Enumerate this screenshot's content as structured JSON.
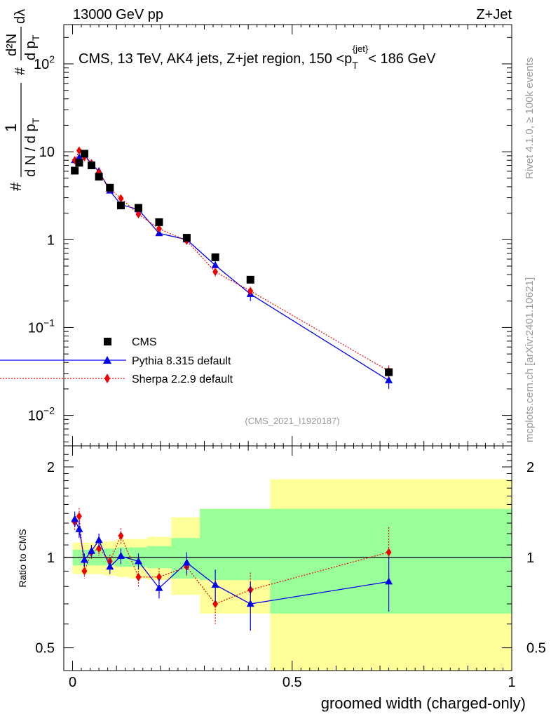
{
  "header": {
    "left": "13000 GeV pp",
    "right": "Z+Jet"
  },
  "side_labels": {
    "right_top": "Rivet 4.1.0, ≥ 100k events",
    "right_bottom": "mcplots.cern.ch [arXiv:2401.10621]"
  },
  "colors": {
    "cms": "#000000",
    "pythia": "#0000ee",
    "sherpa": "#ee0000",
    "band_outer": "#ffff99",
    "band_inner": "#99ff99"
  },
  "chart_data": [
    {
      "type": "scatter",
      "scale": "log",
      "title": "CMS, 13 TeV, AK4 jets, Z+jet region, 150 <p_T^{jet}< 186 GeV",
      "title_parts": {
        "main": "CMS, 13 TeV, AK4 jets, Z+jet region, 150 <p",
        "sub": "T",
        "sup": "{jet}",
        "tail": "< 186 GeV"
      },
      "ylabel": "1/N dN/dp_T d²N/dp_T dλ",
      "ylabel_parts": {
        "hash": "#",
        "n1": "1",
        "d1": "d N / d p",
        "t": "T",
        "n2": "d²N",
        "d2": "d p",
        "dl": "dλ"
      },
      "ylim": [
        0.0045,
        280
      ],
      "yticks": [
        {
          "value": 0.01,
          "label": "10",
          "exp": "−2"
        },
        {
          "value": 0.1,
          "label": "10",
          "exp": "−1"
        },
        {
          "value": 1,
          "label": "1",
          "exp": ""
        },
        {
          "value": 10,
          "label": "10",
          "exp": ""
        },
        {
          "value": 100,
          "label": "10",
          "exp": "2"
        }
      ],
      "watermark": "(CMS_2021_I1920187)",
      "legend_position": "bottom-left",
      "series": [
        {
          "name": "CMS",
          "marker": "square",
          "x": [
            0.005,
            0.015,
            0.027,
            0.043,
            0.06,
            0.085,
            0.11,
            0.15,
            0.197,
            0.26,
            0.325,
            0.405,
            0.72
          ],
          "y": [
            6.1,
            7.5,
            9.5,
            7.0,
            5.2,
            3.9,
            2.45,
            2.3,
            1.58,
            1.05,
            0.63,
            0.35,
            0.031
          ],
          "err": [
            0.2,
            0.2,
            0.2,
            0.2,
            0.15,
            0.1,
            0.08,
            0.08,
            0.06,
            0.04,
            0.03,
            0.02,
            0.003
          ]
        },
        {
          "name": "Pythia 8.315 default",
          "marker": "triangle",
          "x": [
            0.005,
            0.015,
            0.027,
            0.043,
            0.06,
            0.085,
            0.11,
            0.15,
            0.197,
            0.26,
            0.325,
            0.405,
            0.72
          ],
          "y": [
            8.0,
            8.6,
            9.2,
            7.3,
            6.0,
            3.6,
            2.5,
            2.2,
            1.18,
            1.0,
            0.51,
            0.24,
            0.025
          ],
          "err": [
            0.5,
            0.6,
            0.5,
            0.4,
            0.3,
            0.2,
            0.15,
            0.15,
            0.08,
            0.08,
            0.06,
            0.04,
            0.005
          ]
        },
        {
          "name": "Sherpa 2.2.9 default",
          "marker": "diamond",
          "x": [
            0.005,
            0.015,
            0.027,
            0.043,
            0.06,
            0.085,
            0.11,
            0.15,
            0.197,
            0.26,
            0.325,
            0.405,
            0.72
          ],
          "y": [
            8.0,
            10.3,
            8.7,
            7.4,
            5.8,
            3.8,
            2.95,
            1.95,
            1.33,
            0.97,
            0.43,
            0.26,
            0.032
          ],
          "err": [
            0.5,
            0.6,
            0.5,
            0.4,
            0.3,
            0.2,
            0.15,
            0.12,
            0.08,
            0.06,
            0.05,
            0.03,
            0.005
          ]
        }
      ]
    },
    {
      "type": "scatter",
      "scale": "log",
      "ylabel": "Ratio to CMS",
      "xlabel": "groomed width (charged-only)",
      "xlim": [
        -0.02,
        1.0
      ],
      "ylim": [
        0.42,
        2.35
      ],
      "xticks": [
        {
          "value": 0,
          "label": "0"
        },
        {
          "value": 0.5,
          "label": "0.5"
        },
        {
          "value": 1,
          "label": "1"
        }
      ],
      "yticks": [
        {
          "value": 0.5,
          "label": "0.5"
        },
        {
          "value": 1,
          "label": "1"
        },
        {
          "value": 2,
          "label": "2"
        }
      ],
      "bands": [
        {
          "x0": 0.0,
          "x1": 0.01,
          "inner": [
            0.94,
            1.06
          ],
          "outer": [
            0.88,
            1.12
          ]
        },
        {
          "x0": 0.01,
          "x1": 0.02,
          "inner": [
            0.94,
            1.06
          ],
          "outer": [
            0.88,
            1.12
          ]
        },
        {
          "x0": 0.02,
          "x1": 0.035,
          "inner": [
            0.94,
            1.06
          ],
          "outer": [
            0.88,
            1.12
          ]
        },
        {
          "x0": 0.035,
          "x1": 0.05,
          "inner": [
            0.94,
            1.06
          ],
          "outer": [
            0.88,
            1.12
          ]
        },
        {
          "x0": 0.05,
          "x1": 0.07,
          "inner": [
            0.94,
            1.07
          ],
          "outer": [
            0.88,
            1.13
          ]
        },
        {
          "x0": 0.07,
          "x1": 0.1,
          "inner": [
            0.94,
            1.07
          ],
          "outer": [
            0.87,
            1.13
          ]
        },
        {
          "x0": 0.1,
          "x1": 0.13,
          "inner": [
            0.93,
            1.08
          ],
          "outer": [
            0.86,
            1.15
          ]
        },
        {
          "x0": 0.13,
          "x1": 0.17,
          "inner": [
            0.93,
            1.08
          ],
          "outer": [
            0.85,
            1.15
          ]
        },
        {
          "x0": 0.17,
          "x1": 0.225,
          "inner": [
            0.92,
            1.09
          ],
          "outer": [
            0.84,
            1.17
          ]
        },
        {
          "x0": 0.225,
          "x1": 0.29,
          "inner": [
            0.85,
            1.16
          ],
          "outer": [
            0.75,
            1.36
          ]
        },
        {
          "x0": 0.29,
          "x1": 0.45,
          "inner": [
            0.84,
            1.45
          ],
          "outer": [
            0.65,
            1.45
          ]
        },
        {
          "x0": 0.45,
          "x1": 1.0,
          "inner": [
            0.65,
            1.45
          ],
          "outer": [
            0.42,
            1.82
          ]
        }
      ],
      "series": [
        {
          "name": "Pythia 8.315 default",
          "marker": "triangle",
          "x": [
            0.005,
            0.015,
            0.027,
            0.043,
            0.06,
            0.085,
            0.11,
            0.15,
            0.197,
            0.26,
            0.325,
            0.405,
            0.72
          ],
          "y": [
            1.34,
            1.24,
            0.98,
            1.05,
            1.14,
            0.93,
            1.01,
            0.97,
            0.79,
            0.96,
            0.81,
            0.7,
            0.83
          ],
          "err": [
            0.08,
            0.08,
            0.05,
            0.05,
            0.06,
            0.05,
            0.06,
            0.06,
            0.06,
            0.08,
            0.1,
            0.13,
            0.17
          ]
        },
        {
          "name": "Sherpa 2.2.9 default",
          "marker": "diamond",
          "x": [
            0.005,
            0.015,
            0.027,
            0.043,
            0.06,
            0.085,
            0.11,
            0.15,
            0.197,
            0.26,
            0.325,
            0.405,
            0.72
          ],
          "y": [
            1.31,
            1.37,
            0.9,
            1.04,
            1.07,
            0.97,
            1.18,
            0.86,
            0.86,
            0.93,
            0.7,
            0.78,
            1.04
          ],
          "err": [
            0.08,
            0.09,
            0.05,
            0.05,
            0.06,
            0.05,
            0.07,
            0.06,
            0.06,
            0.07,
            0.1,
            0.11,
            0.22
          ]
        }
      ],
      "reference": 1
    }
  ]
}
